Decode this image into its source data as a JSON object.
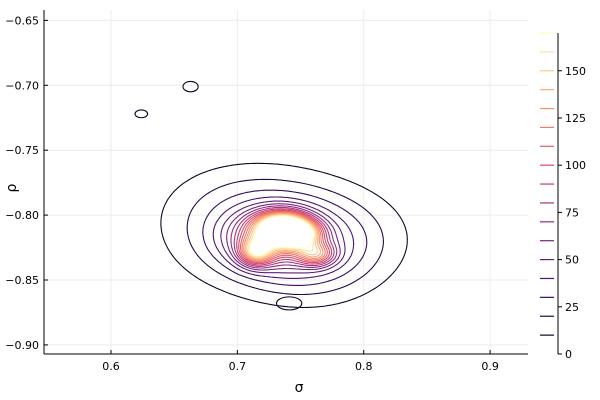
{
  "chart_data": {
    "type": "contour",
    "title": "",
    "xlabel": "σ",
    "ylabel": "ρ",
    "xlim": [
      0.547,
      0.93
    ],
    "ylim": [
      -0.907,
      -0.642
    ],
    "xticks": [
      0.6,
      0.7,
      0.8,
      0.9
    ],
    "xtick_labels": [
      "0.6",
      "0.7",
      "0.8",
      "0.9"
    ],
    "yticks": [
      -0.65,
      -0.7,
      -0.75,
      -0.8,
      -0.85,
      -0.9
    ],
    "ytick_labels": [
      "−0.65",
      "−0.70",
      "−0.75",
      "−0.80",
      "−0.85",
      "−0.90"
    ],
    "grid": true,
    "colorbar": {
      "range": [
        0,
        170
      ],
      "ticks": [
        0,
        25,
        50,
        75,
        100,
        125,
        150
      ],
      "tick_labels": [
        "0",
        "25",
        "50",
        "75",
        "100",
        "125",
        "150"
      ],
      "levels": [
        10,
        20,
        30,
        40,
        50,
        60,
        70,
        80,
        90,
        100,
        110,
        120,
        130,
        140,
        150,
        160,
        170
      ],
      "colormap": [
        "#000004",
        "#3b0f70",
        "#8c2981",
        "#de4968",
        "#fe9f6d",
        "#fcfdbf"
      ]
    },
    "density_peaks": [
      {
        "x": 0.735,
        "y": -0.81,
        "level": 170
      },
      {
        "x": 0.715,
        "y": -0.828,
        "level": 110
      },
      {
        "x": 0.762,
        "y": -0.83,
        "level": 90
      },
      {
        "x": 0.748,
        "y": -0.815,
        "level": 120
      }
    ]
  }
}
